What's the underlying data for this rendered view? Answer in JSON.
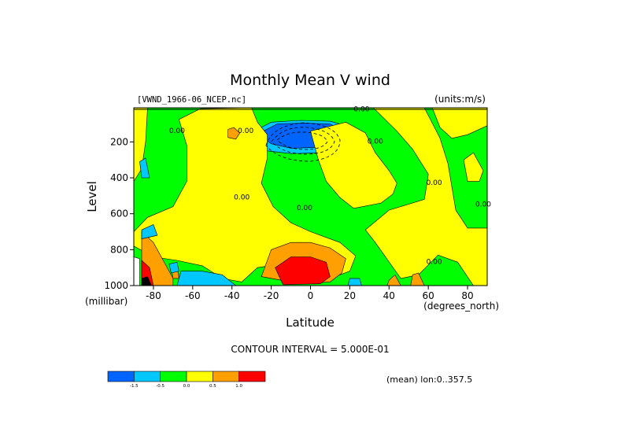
{
  "chart_data": {
    "type": "heatmap",
    "title": "Monthly Mean V wind",
    "dataset_label": "[VWND_1966-06_NCEP.nc]",
    "units_label": "(units:m/s)",
    "xlabel": "Latitude",
    "ylabel": "Level",
    "x_unit_label": "(degrees_north)",
    "y_unit_label": "(millibar)",
    "xlim": [
      -90,
      90
    ],
    "ylim": [
      1000,
      10
    ],
    "x_ticks": [
      -80,
      -60,
      -40,
      -20,
      0,
      20,
      40,
      60,
      80
    ],
    "y_ticks": [
      200,
      400,
      600,
      800,
      1000
    ],
    "contour_interval_text": "CONTOUR INTERVAL = 5.000E-01",
    "mean_note": "(mean) lon:0..357.5",
    "contour_labels": [
      {
        "text": "0.00",
        "lat": -68,
        "lev": 150
      },
      {
        "text": "0.00",
        "lat": -33,
        "lev": 150
      },
      {
        "text": "0.00",
        "lat": 26,
        "lev": 30
      },
      {
        "text": "0.00",
        "lat": 33,
        "lev": 210
      },
      {
        "text": "0.00",
        "lat": -35,
        "lev": 520
      },
      {
        "text": "0.00",
        "lat": -3,
        "lev": 580
      },
      {
        "text": "0.00",
        "lat": 63,
        "lev": 440
      },
      {
        "text": "0.00",
        "lat": 88,
        "lev": 560
      },
      {
        "text": "0.00",
        "lat": 63,
        "lev": 880
      }
    ],
    "colorbar": {
      "colors": [
        "#0064ff",
        "#00c8ff",
        "#00ff00",
        "#ffff00",
        "#ffa000",
        "#ff0000"
      ],
      "labels": [
        "-1.5",
        "-0.5",
        "0.0",
        "0.5",
        "1.0"
      ]
    },
    "regions": [
      {
        "fill": "#00c8ff",
        "pts": [
          [
            -27,
            130
          ],
          [
            -20,
            90
          ],
          [
            -5,
            80
          ],
          [
            10,
            85
          ],
          [
            18,
            110
          ],
          [
            18,
            210
          ],
          [
            10,
            260
          ],
          [
            -10,
            265
          ],
          [
            -22,
            250
          ],
          [
            -28,
            200
          ]
        ]
      },
      {
        "fill": "#0064ff",
        "pts": [
          [
            -24,
            140
          ],
          [
            -17,
            100
          ],
          [
            -3,
            95
          ],
          [
            10,
            100
          ],
          [
            15,
            130
          ],
          [
            14,
            205
          ],
          [
            5,
            230
          ],
          [
            -10,
            235
          ],
          [
            -20,
            210
          ],
          [
            -24,
            180
          ]
        ]
      },
      {
        "fill": "#ffff00",
        "pts": [
          [
            -90,
            10
          ],
          [
            -83,
            10
          ],
          [
            -84,
            200
          ],
          [
            -86,
            350
          ],
          [
            -90,
            420
          ]
        ]
      },
      {
        "fill": "#ffff00",
        "pts": [
          [
            -67,
            75
          ],
          [
            -56,
            15
          ],
          [
            -30,
            10
          ],
          [
            -27,
            90
          ],
          [
            -22,
            160
          ],
          [
            -22,
            290
          ],
          [
            -25,
            430
          ],
          [
            -19,
            560
          ],
          [
            -10,
            650
          ],
          [
            0,
            700
          ],
          [
            15,
            760
          ],
          [
            23,
            835
          ],
          [
            20,
            920
          ],
          [
            10,
            960
          ],
          [
            -5,
            910
          ],
          [
            -15,
            880
          ],
          [
            -27,
            900
          ],
          [
            -35,
            980
          ],
          [
            -45,
            960
          ],
          [
            -55,
            890
          ],
          [
            -68,
            860
          ],
          [
            -80,
            840
          ],
          [
            -90,
            780
          ],
          [
            -90,
            700
          ],
          [
            -83,
            620
          ],
          [
            -70,
            560
          ],
          [
            -63,
            420
          ],
          [
            -63,
            220
          ]
        ]
      },
      {
        "fill": "#ffff00",
        "pts": [
          [
            0,
            140
          ],
          [
            18,
            90
          ],
          [
            28,
            150
          ],
          [
            33,
            260
          ],
          [
            40,
            360
          ],
          [
            44,
            430
          ],
          [
            42,
            490
          ],
          [
            36,
            540
          ],
          [
            22,
            570
          ],
          [
            15,
            510
          ],
          [
            8,
            420
          ],
          [
            4,
            300
          ]
        ]
      },
      {
        "fill": "#ffff00",
        "pts": [
          [
            32,
            10
          ],
          [
            58,
            10
          ],
          [
            66,
            180
          ],
          [
            70,
            320
          ],
          [
            74,
            580
          ],
          [
            80,
            680
          ],
          [
            90,
            680
          ],
          [
            90,
            1000
          ],
          [
            83,
            1000
          ],
          [
            75,
            870
          ],
          [
            65,
            830
          ],
          [
            55,
            940
          ],
          [
            46,
            960
          ],
          [
            33,
            760
          ],
          [
            28,
            690
          ],
          [
            40,
            580
          ],
          [
            58,
            520
          ],
          [
            60,
            380
          ],
          [
            52,
            240
          ],
          [
            44,
            140
          ]
        ]
      },
      {
        "fill": "#ffff00",
        "pts": [
          [
            62,
            10
          ],
          [
            90,
            10
          ],
          [
            90,
            110
          ],
          [
            80,
            160
          ],
          [
            72,
            180
          ],
          [
            66,
            120
          ]
        ]
      },
      {
        "fill": "#ffff00",
        "pts": [
          [
            78,
            300
          ],
          [
            83,
            260
          ],
          [
            88,
            360
          ],
          [
            86,
            420
          ],
          [
            80,
            420
          ]
        ]
      },
      {
        "fill": "#ffa000",
        "pts": [
          [
            -42,
            130
          ],
          [
            -39,
            120
          ],
          [
            -36,
            150
          ],
          [
            -38,
            185
          ],
          [
            -42,
            175
          ]
        ]
      },
      {
        "fill": "#ffa000",
        "pts": [
          [
            -86,
            700
          ],
          [
            -80,
            760
          ],
          [
            -75,
            860
          ],
          [
            -70,
            960
          ],
          [
            -70,
            1000
          ],
          [
            -86,
            1000
          ]
        ]
      },
      {
        "fill": "#ffa000",
        "pts": [
          [
            -25,
            950
          ],
          [
            -20,
            800
          ],
          [
            -10,
            760
          ],
          [
            0,
            760
          ],
          [
            10,
            790
          ],
          [
            18,
            850
          ],
          [
            16,
            930
          ],
          [
            10,
            980
          ],
          [
            -5,
            990
          ]
        ]
      },
      {
        "fill": "#ffa000",
        "pts": [
          [
            52,
            940
          ],
          [
            55,
            930
          ],
          [
            58,
            1000
          ],
          [
            51,
            1000
          ]
        ]
      },
      {
        "fill": "#ffa000",
        "pts": [
          [
            40,
            970
          ],
          [
            43,
            940
          ],
          [
            46,
            1000
          ],
          [
            39,
            1000
          ]
        ]
      },
      {
        "fill": "#ffa000",
        "pts": [
          [
            -71,
            900
          ],
          [
            -68,
            890
          ],
          [
            -67,
            960
          ],
          [
            -70,
            960
          ]
        ]
      },
      {
        "fill": "#ff0000",
        "pts": [
          [
            -18,
            900
          ],
          [
            -10,
            840
          ],
          [
            0,
            840
          ],
          [
            8,
            870
          ],
          [
            10,
            950
          ],
          [
            5,
            990
          ],
          [
            -14,
            995
          ]
        ]
      },
      {
        "fill": "#ff0000",
        "pts": [
          [
            -86,
            860
          ],
          [
            -82,
            900
          ],
          [
            -80,
            1000
          ],
          [
            -86,
            1000
          ]
        ]
      },
      {
        "fill": "#00c8ff",
        "pts": [
          [
            -86,
            690
          ],
          [
            -80,
            660
          ],
          [
            -78,
            720
          ],
          [
            -86,
            740
          ]
        ]
      },
      {
        "fill": "#00c8ff",
        "pts": [
          [
            -66,
            920
          ],
          [
            -55,
            920
          ],
          [
            -45,
            940
          ],
          [
            -38,
            1000
          ],
          [
            -68,
            1000
          ]
        ]
      },
      {
        "fill": "#00c8ff",
        "pts": [
          [
            -87,
            310
          ],
          [
            -84,
            290
          ],
          [
            -82,
            400
          ],
          [
            -86,
            400
          ]
        ]
      },
      {
        "fill": "#00c8ff",
        "pts": [
          [
            -72,
            880
          ],
          [
            -68,
            870
          ],
          [
            -67,
            920
          ],
          [
            -71,
            930
          ]
        ]
      },
      {
        "fill": "#00c8ff",
        "pts": [
          [
            20,
            960
          ],
          [
            25,
            960
          ],
          [
            26,
            1000
          ],
          [
            19,
            1000
          ]
        ]
      },
      {
        "fill": "#ffffff",
        "pts": [
          [
            -90,
            840
          ],
          [
            -87,
            850
          ],
          [
            -87,
            1000
          ],
          [
            -90,
            1000
          ]
        ]
      },
      {
        "fill": "#000000",
        "pts": [
          [
            -86,
            960
          ],
          [
            -83,
            950
          ],
          [
            -81,
            1000
          ],
          [
            -86,
            1000
          ]
        ]
      }
    ]
  }
}
